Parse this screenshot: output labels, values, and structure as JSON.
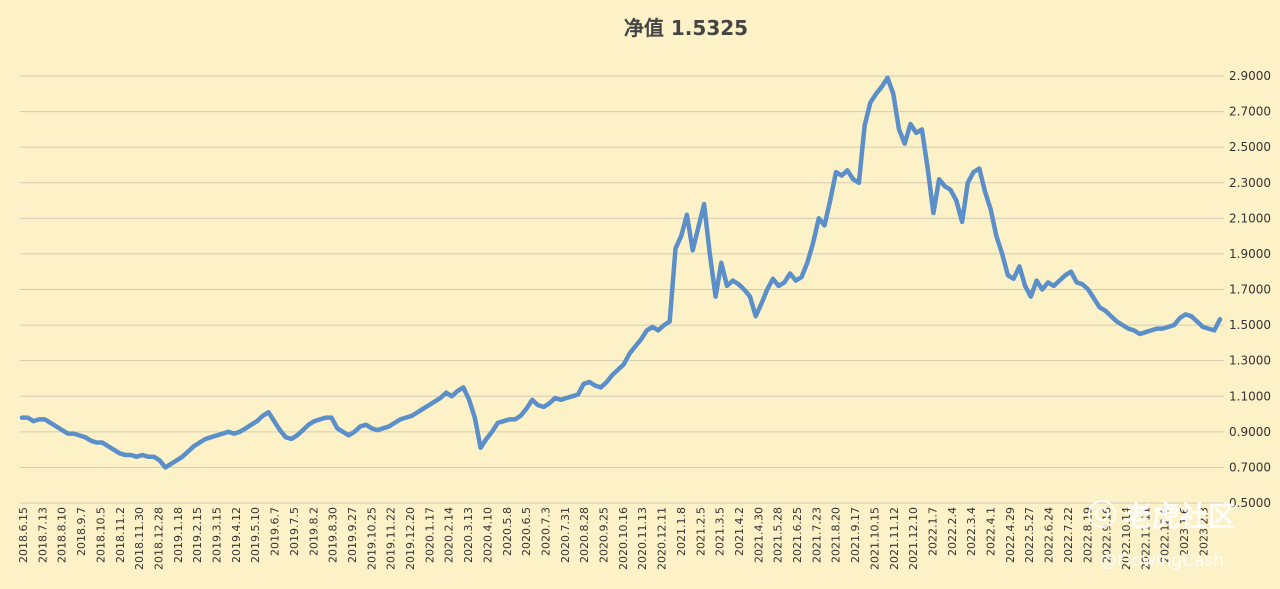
{
  "chart_data": {
    "type": "line",
    "title": "净值 1.5325",
    "xlabel": "",
    "ylabel": "",
    "ylim": [
      0.5,
      2.9
    ],
    "yticks": [
      "2.9000",
      "2.7000",
      "2.5000",
      "2.3000",
      "2.1000",
      "1.9000",
      "1.7000",
      "1.5000",
      "1.3000",
      "1.1000",
      "0.9000",
      "0.7000",
      "0.5000"
    ],
    "grid": true,
    "legend": "none",
    "x_tick_labels": [
      "2018.6.15",
      "2018.7.13",
      "2018.8.10",
      "2018.9.7",
      "2018.10.5",
      "2018.11.2",
      "2018.11.30",
      "2018.12.28",
      "2019.1.18",
      "2019.2.15",
      "2019.3.15",
      "2019.4.12",
      "2019.5.10",
      "2019.6.7",
      "2019.7.5",
      "2019.8.2",
      "2019.8.30",
      "2019.9.27",
      "2019.10.25",
      "2019.11.22",
      "2019.12.20",
      "2020.1.17",
      "2020.2.14",
      "2020.3.13",
      "2020.4.10",
      "2020.5.8",
      "2020.6.5",
      "2020.7.3",
      "2020.7.31",
      "2020.8.28",
      "2020.9.25",
      "2020.10.16",
      "2020.11.13",
      "2020.12.11",
      "2021.1.8",
      "2021.2.5",
      "2021.3.5",
      "2021.4.2",
      "2021.4.30",
      "2021.5.28",
      "2021.6.25",
      "2021.7.23",
      "2021.8.20",
      "2021.9.17",
      "2021.10.15",
      "2021.11.12",
      "2021.12.10",
      "2022.1.7",
      "2022.2.4",
      "2022.3.4",
      "2022.4.1",
      "2022.4.29",
      "2022.5.27",
      "2022.6.24",
      "2022.7.22",
      "2022.8.19",
      "2022.9.16",
      "2022.10.14",
      "2022.11.11",
      "2022.12.9",
      "2023.1.6",
      "2023.2.3"
    ],
    "x_tick_labels_partial": [
      "2022.8.",
      "2022.9.",
      "2022.10.14",
      "2022.11.",
      "2022.12.",
      "2023.1.",
      "2023.2.",
      "2023.3"
    ],
    "series": [
      {
        "name": "",
        "color": "#5b8fc9",
        "values": [
          0.98,
          0.98,
          0.96,
          0.97,
          0.97,
          0.95,
          0.93,
          0.91,
          0.89,
          0.89,
          0.88,
          0.87,
          0.85,
          0.84,
          0.84,
          0.82,
          0.8,
          0.78,
          0.77,
          0.77,
          0.76,
          0.77,
          0.76,
          0.76,
          0.74,
          0.7,
          0.72,
          0.74,
          0.76,
          0.79,
          0.82,
          0.84,
          0.86,
          0.87,
          0.88,
          0.89,
          0.9,
          0.89,
          0.9,
          0.92,
          0.94,
          0.96,
          0.99,
          1.01,
          0.96,
          0.91,
          0.87,
          0.86,
          0.88,
          0.91,
          0.94,
          0.96,
          0.97,
          0.98,
          0.98,
          0.92,
          0.9,
          0.88,
          0.9,
          0.93,
          0.94,
          0.92,
          0.91,
          0.92,
          0.93,
          0.95,
          0.97,
          0.98,
          0.99,
          1.01,
          1.03,
          1.05,
          1.07,
          1.09,
          1.12,
          1.1,
          1.13,
          1.15,
          1.08,
          0.98,
          0.81,
          0.86,
          0.9,
          0.95,
          0.96,
          0.97,
          0.97,
          0.99,
          1.03,
          1.08,
          1.05,
          1.04,
          1.06,
          1.09,
          1.08,
          1.09,
          1.1,
          1.11,
          1.17,
          1.18,
          1.16,
          1.15,
          1.18,
          1.22,
          1.25,
          1.28,
          1.34,
          1.38,
          1.42,
          1.47,
          1.49,
          1.47,
          1.5,
          1.52,
          1.93,
          2.0,
          2.12,
          1.92,
          2.05,
          2.18,
          1.9,
          1.66,
          1.85,
          1.72,
          1.75,
          1.73,
          1.7,
          1.66,
          1.55,
          1.62,
          1.7,
          1.76,
          1.72,
          1.74,
          1.79,
          1.75,
          1.77,
          1.85,
          1.96,
          2.1,
          2.06,
          2.2,
          2.36,
          2.34,
          2.37,
          2.32,
          2.3,
          2.62,
          2.75,
          2.8,
          2.84,
          2.89,
          2.8,
          2.6,
          2.52,
          2.63,
          2.58,
          2.6,
          2.38,
          2.13,
          2.32,
          2.28,
          2.26,
          2.2,
          2.08,
          2.3,
          2.36,
          2.38,
          2.25,
          2.15,
          2.0,
          1.9,
          1.78,
          1.76,
          1.83,
          1.72,
          1.66,
          1.75,
          1.7,
          1.74,
          1.72,
          1.75,
          1.78,
          1.8,
          1.74,
          1.73,
          1.7,
          1.65,
          1.6,
          1.58,
          1.55,
          1.52,
          1.5,
          1.48,
          1.47,
          1.45,
          1.46,
          1.47,
          1.48,
          1.48,
          1.49,
          1.5,
          1.54,
          1.56,
          1.55,
          1.52,
          1.49,
          1.48,
          1.47,
          1.5325
        ]
      }
    ]
  },
  "watermark": {
    "text": "老虎社区",
    "handle": "@FlowingCash",
    "icon": "tiger-logo-icon"
  }
}
